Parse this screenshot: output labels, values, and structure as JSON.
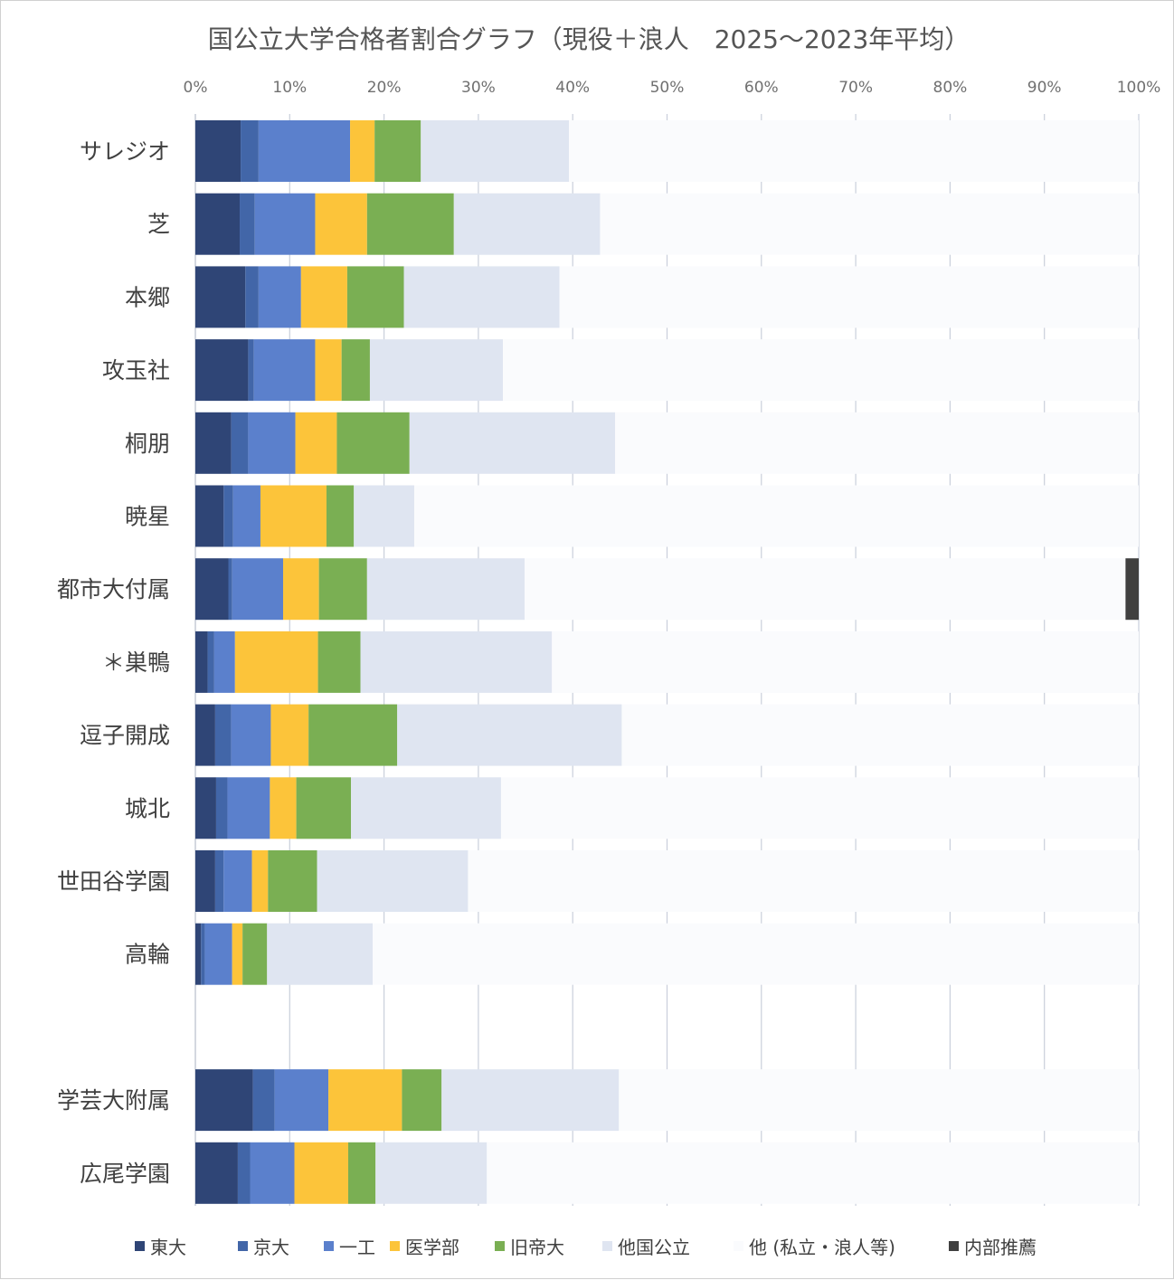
{
  "chart_data": {
    "type": "bar",
    "orientation": "horizontal",
    "stacked": true,
    "title": "国公立大学合格者割合グラフ（現役＋浪人　2025〜2023年平均）",
    "xlim": [
      0,
      100
    ],
    "xticks": [
      "0%",
      "10%",
      "20%",
      "30%",
      "40%",
      "50%",
      "60%",
      "70%",
      "80%",
      "90%",
      "100%"
    ],
    "grid": true,
    "legend_position": "bottom",
    "categories": [
      "サレジオ",
      "芝",
      "本郷",
      "攻玉社",
      "桐朋",
      "暁星",
      "都市大付属",
      "＊巣鴨",
      "逗子開成",
      "城北",
      "世田谷学園",
      "高輪",
      "",
      "学芸大附属",
      "広尾学園"
    ],
    "series": [
      {
        "name": "東大",
        "color": "#2f4576",
        "values": [
          4.8,
          4.7,
          5.3,
          5.6,
          3.8,
          3.0,
          3.5,
          1.3,
          2.1,
          2.2,
          2.1,
          0.6,
          0,
          6.1,
          4.5
        ]
      },
      {
        "name": "京大",
        "color": "#4266a8",
        "values": [
          1.9,
          1.6,
          1.4,
          0.6,
          1.8,
          1.0,
          0.4,
          0.7,
          1.7,
          1.2,
          0.9,
          0.4,
          0,
          2.3,
          1.3
        ]
      },
      {
        "name": "一工",
        "color": "#5b80cc",
        "values": [
          9.7,
          6.4,
          4.5,
          6.5,
          5.0,
          2.9,
          5.4,
          2.2,
          4.2,
          4.5,
          3.0,
          2.9,
          0,
          5.7,
          4.7
        ]
      },
      {
        "name": "医学部",
        "color": "#fcc43a",
        "values": [
          2.6,
          5.5,
          4.9,
          2.8,
          4.4,
          7.0,
          3.8,
          8.8,
          4.0,
          2.8,
          1.7,
          1.1,
          0,
          7.8,
          5.7
        ]
      },
      {
        "name": "旧帝大",
        "color": "#7aaf53",
        "values": [
          4.9,
          9.2,
          6.0,
          3.0,
          7.7,
          2.9,
          5.1,
          4.5,
          9.4,
          5.8,
          5.2,
          2.6,
          0,
          4.2,
          2.9
        ]
      },
      {
        "name": "他国公立",
        "color": "#dfe5f1",
        "values": [
          15.7,
          15.5,
          16.5,
          14.1,
          21.8,
          6.4,
          16.7,
          20.3,
          23.8,
          15.9,
          16.0,
          11.2,
          0,
          18.8,
          11.8
        ]
      },
      {
        "name": "他 (私立・浪人等)",
        "color": "#fafbfd",
        "values": [
          60.4,
          57.1,
          61.4,
          67.4,
          55.5,
          76.8,
          63.7,
          62.2,
          54.8,
          67.6,
          71.1,
          81.2,
          0,
          55.1,
          69.1
        ]
      },
      {
        "name": "内部推薦",
        "color": "#404040",
        "values": [
          0,
          0,
          0,
          0,
          0,
          0,
          1.4,
          0,
          0,
          0,
          0,
          0,
          0,
          0,
          0
        ]
      }
    ]
  }
}
